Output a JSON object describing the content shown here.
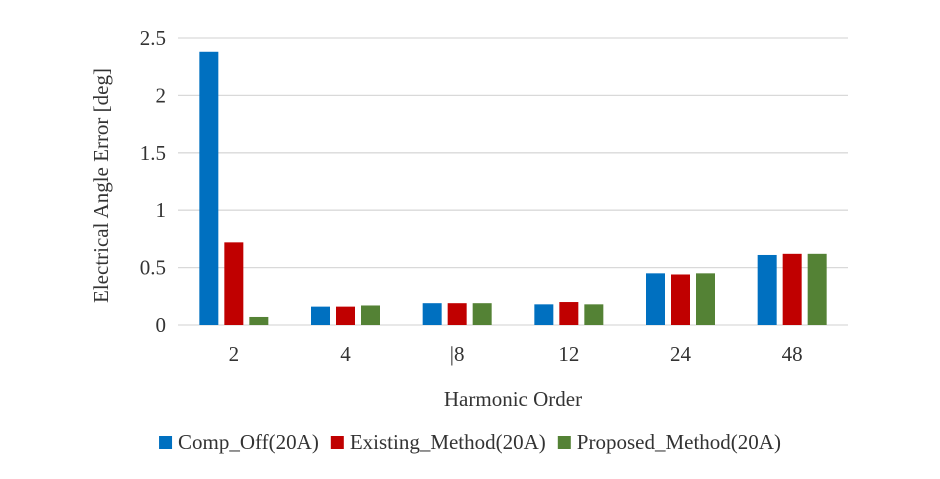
{
  "chart_data": {
    "type": "bar",
    "categories": [
      "2",
      "4",
      "|8",
      "12",
      "24",
      "48"
    ],
    "series": [
      {
        "name": "Comp_Off(20A)",
        "values": [
          2.38,
          0.16,
          0.19,
          0.18,
          0.45,
          0.61
        ],
        "color": "#0070C0"
      },
      {
        "name": "Existing_Method(20A)",
        "values": [
          0.72,
          0.16,
          0.19,
          0.2,
          0.44,
          0.62
        ],
        "color": "#C00000"
      },
      {
        "name": "Proposed_Method(20A)",
        "values": [
          0.07,
          0.17,
          0.19,
          0.18,
          0.45,
          0.62
        ],
        "color": "#548235"
      }
    ],
    "xlabel": "Harmonic Order",
    "ylabel": "Electrical Angle Error [deg]",
    "ylim": [
      0,
      2.5
    ],
    "yticks": [
      0,
      0.5,
      1,
      1.5,
      2,
      2.5
    ],
    "ytick_labels": [
      "0",
      "0.5",
      "1",
      "1.5",
      "2",
      "2.5"
    ],
    "grid": true,
    "legend_position": "bottom"
  }
}
